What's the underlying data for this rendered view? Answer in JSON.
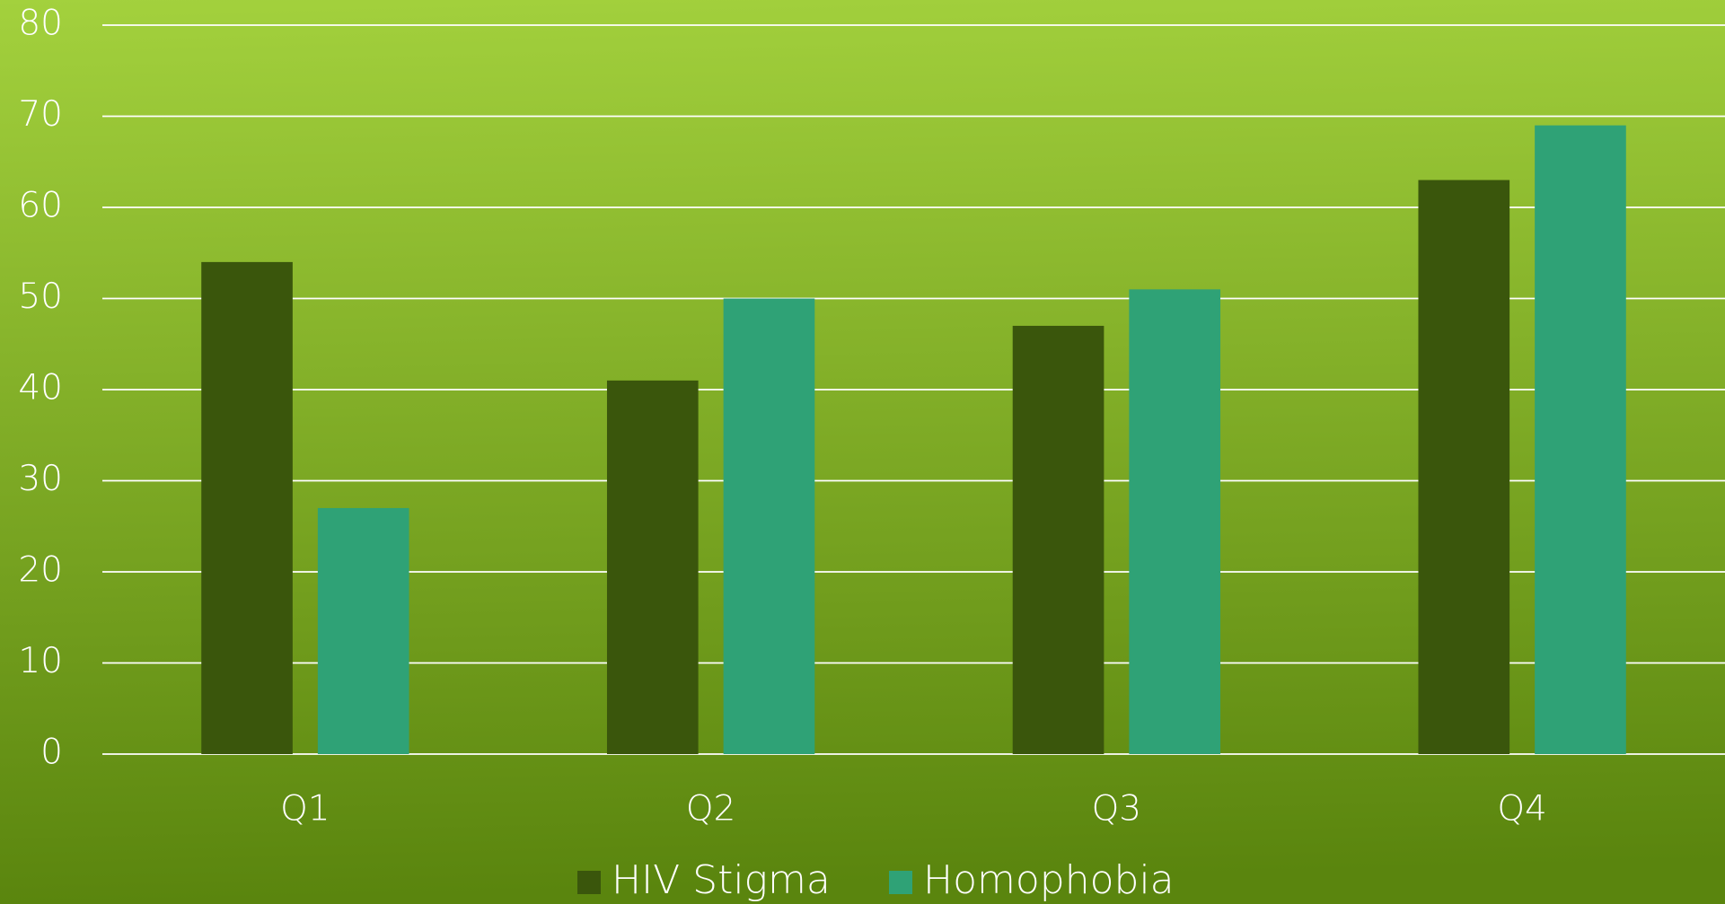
{
  "chart_data": {
    "type": "bar",
    "categories": [
      "Q1",
      "Q2",
      "Q3",
      "Q4"
    ],
    "series": [
      {
        "name": "HIV Stigma",
        "color": "#3a560c",
        "values": [
          54,
          41,
          47,
          63
        ]
      },
      {
        "name": "Homophobia",
        "color": "#2fa276",
        "values": [
          27,
          50,
          51,
          69
        ]
      }
    ],
    "ylim": [
      0,
      80
    ],
    "yticks": [
      0,
      10,
      20,
      30,
      40,
      50,
      60,
      70,
      80
    ],
    "grid": true,
    "legend": "bottom"
  }
}
